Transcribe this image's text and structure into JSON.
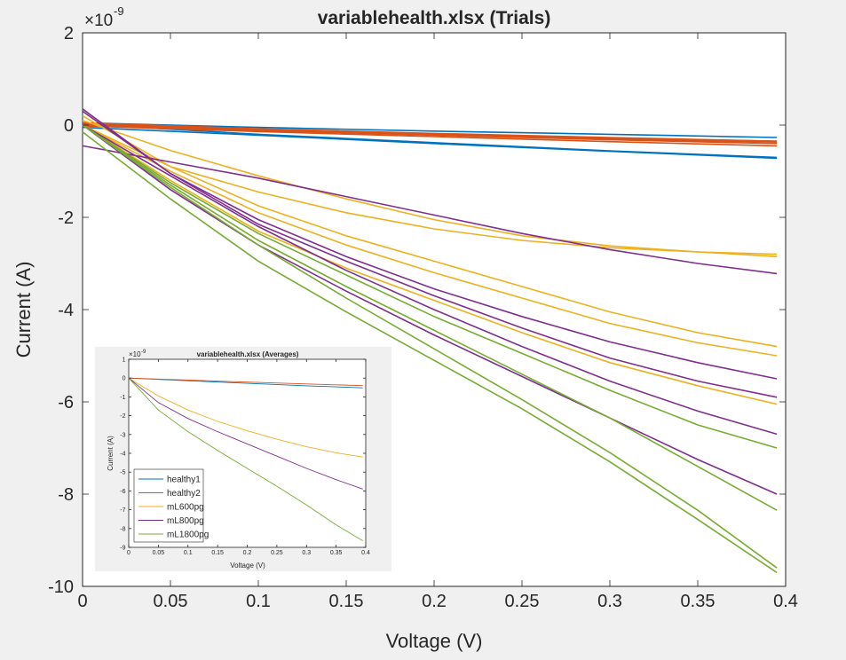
{
  "chart_data": [
    {
      "type": "line",
      "title": "variablehealth.xlsx   (Trials)",
      "xlabel": "Voltage (V)",
      "ylabel": "Current (A)",
      "xlim": [
        0,
        0.4
      ],
      "ylim": [
        -10,
        2
      ],
      "exponent_label": "×10",
      "exponent_power": "-9",
      "xticks": [
        "0",
        "0.05",
        "0.1",
        "0.15",
        "0.2",
        "0.25",
        "0.3",
        "0.35",
        "0.4"
      ],
      "yticks": [
        "2",
        "0",
        "-2",
        "-4",
        "-6",
        "-8",
        "-10"
      ],
      "grid": false,
      "colors": {
        "healthy1": "#0072bd",
        "healthy2": "#d95319",
        "mL600pg": "#edb120",
        "mL800pg": "#7e2f8e",
        "mL1800pg": "#77ac30"
      },
      "trials": [
        {
          "group": "healthy1",
          "x": [
            0,
            0.1,
            0.2,
            0.3,
            0.395
          ],
          "y": [
            0.05,
            -0.05,
            -0.13,
            -0.2,
            -0.27
          ]
        },
        {
          "group": "healthy1",
          "x": [
            0,
            0.1,
            0.2,
            0.3,
            0.395
          ],
          "y": [
            -0.05,
            -0.22,
            -0.4,
            -0.57,
            -0.72
          ]
        },
        {
          "group": "healthy1",
          "x": [
            0,
            0.1,
            0.2,
            0.3,
            0.395
          ],
          "y": [
            0.02,
            -0.2,
            -0.38,
            -0.56,
            -0.7
          ]
        },
        {
          "group": "healthy1",
          "x": [
            0,
            0.1,
            0.2,
            0.3,
            0.395
          ],
          "y": [
            0.03,
            -0.1,
            -0.2,
            -0.28,
            -0.35
          ]
        },
        {
          "group": "healthy2",
          "x": [
            0,
            0.1,
            0.2,
            0.3,
            0.395
          ],
          "y": [
            0.0,
            -0.12,
            -0.22,
            -0.32,
            -0.4
          ]
        },
        {
          "group": "healthy2",
          "x": [
            0,
            0.1,
            0.2,
            0.3,
            0.395
          ],
          "y": [
            0.02,
            -0.1,
            -0.2,
            -0.3,
            -0.37
          ]
        },
        {
          "group": "healthy2",
          "x": [
            0,
            0.1,
            0.2,
            0.3,
            0.395
          ],
          "y": [
            0.05,
            -0.08,
            -0.18,
            -0.27,
            -0.35
          ]
        },
        {
          "group": "healthy2",
          "x": [
            0,
            0.1,
            0.2,
            0.3,
            0.395
          ],
          "y": [
            -0.02,
            -0.14,
            -0.25,
            -0.36,
            -0.45
          ]
        },
        {
          "group": "mL600pg",
          "x": [
            0,
            0.05,
            0.1,
            0.15,
            0.2,
            0.25,
            0.3,
            0.35,
            0.395
          ],
          "y": [
            0.1,
            -0.55,
            -1.1,
            -1.6,
            -2.05,
            -2.4,
            -2.62,
            -2.75,
            -2.8
          ]
        },
        {
          "group": "mL600pg",
          "x": [
            0,
            0.05,
            0.1,
            0.15,
            0.2,
            0.25,
            0.3,
            0.35,
            0.395
          ],
          "y": [
            0.0,
            -0.9,
            -1.45,
            -1.9,
            -2.25,
            -2.5,
            -2.66,
            -2.75,
            -2.85
          ]
        },
        {
          "group": "mL600pg",
          "x": [
            0,
            0.05,
            0.1,
            0.15,
            0.2,
            0.25,
            0.3,
            0.35,
            0.395
          ],
          "y": [
            0.2,
            -0.9,
            -1.75,
            -2.4,
            -2.95,
            -3.5,
            -4.05,
            -4.5,
            -4.8
          ]
        },
        {
          "group": "mL600pg",
          "x": [
            0,
            0.05,
            0.1,
            0.15,
            0.2,
            0.25,
            0.3,
            0.35,
            0.395
          ],
          "y": [
            0.0,
            -1.0,
            -1.9,
            -2.6,
            -3.2,
            -3.75,
            -4.3,
            -4.72,
            -5.0
          ]
        },
        {
          "group": "mL600pg",
          "x": [
            0,
            0.05,
            0.1,
            0.15,
            0.2,
            0.25,
            0.3,
            0.35,
            0.395
          ],
          "y": [
            0.0,
            -1.2,
            -2.3,
            -3.1,
            -3.8,
            -4.5,
            -5.15,
            -5.65,
            -6.05
          ]
        },
        {
          "group": "mL800pg",
          "x": [
            0,
            0.05,
            0.1,
            0.15,
            0.2,
            0.25,
            0.3,
            0.35,
            0.395
          ],
          "y": [
            -0.45,
            -0.8,
            -1.15,
            -1.55,
            -1.95,
            -2.35,
            -2.7,
            -3.0,
            -3.22
          ]
        },
        {
          "group": "mL800pg",
          "x": [
            0,
            0.05,
            0.1,
            0.15,
            0.2,
            0.25,
            0.3,
            0.35,
            0.395
          ],
          "y": [
            0.3,
            -1.05,
            -2.05,
            -2.85,
            -3.55,
            -4.15,
            -4.7,
            -5.15,
            -5.5
          ]
        },
        {
          "group": "mL800pg",
          "x": [
            0,
            0.05,
            0.1,
            0.15,
            0.2,
            0.25,
            0.3,
            0.35,
            0.395
          ],
          "y": [
            0.35,
            -1.05,
            -2.15,
            -2.95,
            -3.7,
            -4.4,
            -5.05,
            -5.55,
            -5.9
          ]
        },
        {
          "group": "mL800pg",
          "x": [
            0,
            0.05,
            0.1,
            0.15,
            0.2,
            0.25,
            0.3,
            0.35,
            0.395
          ],
          "y": [
            0.0,
            -1.1,
            -2.2,
            -3.15,
            -4.0,
            -4.8,
            -5.55,
            -6.2,
            -6.7
          ]
        },
        {
          "group": "mL800pg",
          "x": [
            0,
            0.05,
            0.1,
            0.15,
            0.2,
            0.25,
            0.3,
            0.35,
            0.395
          ],
          "y": [
            0.0,
            -1.4,
            -2.6,
            -3.6,
            -4.55,
            -5.45,
            -6.35,
            -7.25,
            -8.0
          ]
        },
        {
          "group": "mL1800pg",
          "x": [
            0,
            0.05,
            0.1,
            0.15,
            0.2,
            0.25,
            0.3,
            0.35,
            0.395
          ],
          "y": [
            0.0,
            -1.25,
            -2.35,
            -3.25,
            -4.15,
            -4.95,
            -5.75,
            -6.5,
            -7.0
          ]
        },
        {
          "group": "mL1800pg",
          "x": [
            0,
            0.05,
            0.1,
            0.15,
            0.2,
            0.25,
            0.3,
            0.35,
            0.395
          ],
          "y": [
            0.0,
            -1.3,
            -2.5,
            -3.5,
            -4.45,
            -5.4,
            -6.35,
            -7.4,
            -8.35
          ]
        },
        {
          "group": "mL1800pg",
          "x": [
            0,
            0.05,
            0.1,
            0.15,
            0.2,
            0.25,
            0.3,
            0.35,
            0.395
          ],
          "y": [
            0.0,
            -1.35,
            -2.6,
            -3.75,
            -4.85,
            -5.95,
            -7.1,
            -8.35,
            -9.6
          ]
        },
        {
          "group": "mL1800pg",
          "x": [
            0,
            0.05,
            0.1,
            0.15,
            0.2,
            0.25,
            0.3,
            0.35,
            0.395
          ],
          "y": [
            -0.15,
            -1.6,
            -2.95,
            -4.05,
            -5.1,
            -6.15,
            -7.3,
            -8.55,
            -9.7
          ]
        }
      ]
    },
    {
      "type": "line",
      "title": "variablehealth.xlsx   (Averages)",
      "xlabel": "Voltage (V)",
      "ylabel": "Current (A)",
      "xlim": [
        0,
        0.4
      ],
      "ylim": [
        -9,
        1
      ],
      "exponent_label": "×10",
      "exponent_power": "-9",
      "xticks": [
        "0",
        "0.05",
        "0.1",
        "0.15",
        "0.2",
        "0.25",
        "0.3",
        "0.35",
        "0.4"
      ],
      "yticks": [
        "1",
        "0",
        "-1",
        "-2",
        "-3",
        "-4",
        "-5",
        "-6",
        "-7",
        "-8",
        "-9"
      ],
      "legend_position": "bottom-left",
      "series": [
        {
          "name": "healthy1",
          "color": "#0072bd",
          "x": [
            0,
            0.1,
            0.2,
            0.3,
            0.395
          ],
          "y": [
            0.0,
            -0.14,
            -0.28,
            -0.41,
            -0.52
          ]
        },
        {
          "name": "healthy2",
          "color": "#d95319",
          "x": [
            0,
            0.1,
            0.2,
            0.3,
            0.395
          ],
          "y": [
            0.0,
            -0.11,
            -0.21,
            -0.31,
            -0.4
          ]
        },
        {
          "name": "mL600pg",
          "color": "#edb120",
          "x": [
            0,
            0.05,
            0.1,
            0.15,
            0.2,
            0.25,
            0.3,
            0.35,
            0.395
          ],
          "y": [
            0.0,
            -0.95,
            -1.7,
            -2.3,
            -2.8,
            -3.25,
            -3.65,
            -3.97,
            -4.2
          ]
        },
        {
          "name": "mL800pg",
          "color": "#7e2f8e",
          "x": [
            0,
            0.05,
            0.1,
            0.15,
            0.2,
            0.25,
            0.3,
            0.35,
            0.395
          ],
          "y": [
            0.0,
            -1.3,
            -2.15,
            -2.85,
            -3.5,
            -4.15,
            -4.8,
            -5.4,
            -5.9
          ]
        },
        {
          "name": "mL1800pg",
          "color": "#77ac30",
          "x": [
            0,
            0.05,
            0.1,
            0.15,
            0.2,
            0.25,
            0.3,
            0.35,
            0.395
          ],
          "y": [
            0.0,
            -1.7,
            -2.85,
            -3.85,
            -4.8,
            -5.75,
            -6.75,
            -7.8,
            -8.65
          ]
        }
      ]
    }
  ]
}
